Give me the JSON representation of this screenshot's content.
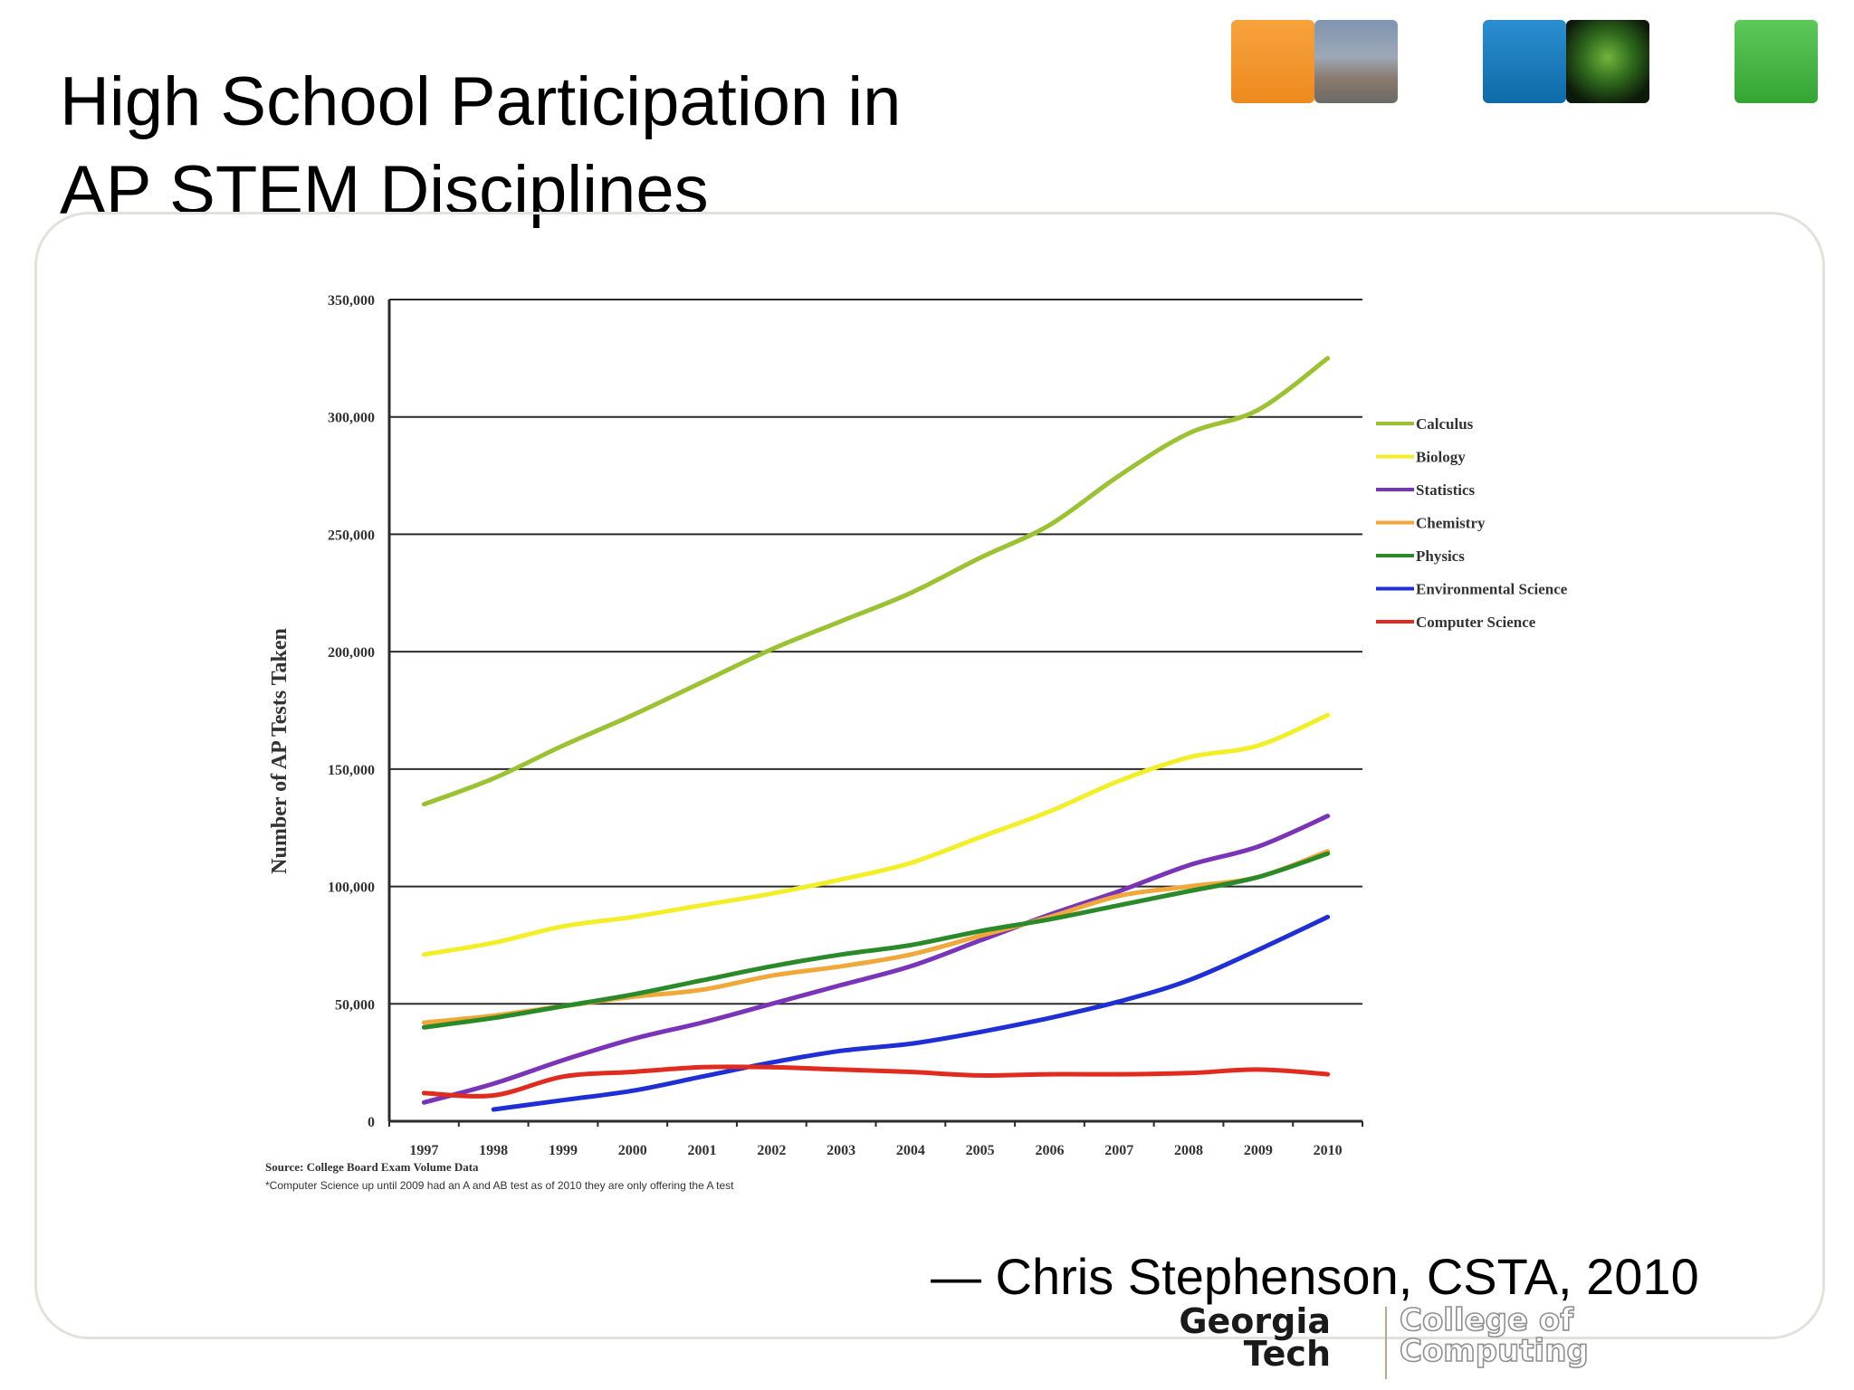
{
  "slide": {
    "title_line1": "High School Participation in",
    "title_line2": "AP STEM Disciplines",
    "quote": "— Chris Stephenson, CSTA, 2010"
  },
  "header_tiles": [
    "orange-tile",
    "campus-photo-tile",
    "blue-tile",
    "network-photo-tile",
    "green-tile"
  ],
  "logo": {
    "line1": "Georgia",
    "line2": "Tech",
    "sub1": "College of",
    "sub2": "Computing"
  },
  "chart_data": {
    "type": "line",
    "title": "",
    "xlabel": "",
    "ylabel": "Number of AP Tests Taken",
    "x": [
      "1997",
      "1998",
      "1999",
      "2000",
      "2001",
      "2002",
      "2003",
      "2004",
      "2005",
      "2006",
      "2007",
      "2008",
      "2009",
      "2010"
    ],
    "ylim": [
      0,
      350000
    ],
    "yticks": [
      0,
      50000,
      100000,
      150000,
      200000,
      250000,
      300000,
      350000
    ],
    "ytick_labels": [
      "0",
      "50,000",
      "100,000",
      "150,000",
      "200,000",
      "250,000",
      "300,000",
      "350,000"
    ],
    "grid": "horizontal",
    "legend_position": "right",
    "series": [
      {
        "name": "Calculus",
        "color": "#9bc232",
        "values": [
          135000,
          146000,
          160000,
          173000,
          187000,
          201000,
          213000,
          225000,
          240000,
          254000,
          275000,
          293000,
          303000,
          325000
        ]
      },
      {
        "name": "Biology",
        "color": "#f2ee28",
        "values": [
          71000,
          76000,
          83000,
          87000,
          92000,
          97000,
          103000,
          110000,
          121000,
          132000,
          145000,
          155000,
          160000,
          173000
        ]
      },
      {
        "name": "Statistics",
        "color": "#7a34b8",
        "values": [
          8000,
          16000,
          26000,
          35000,
          42000,
          50000,
          58000,
          66000,
          77000,
          88000,
          98000,
          109000,
          117000,
          130000
        ]
      },
      {
        "name": "Chemistry",
        "color": "#f0a83a",
        "values": [
          42000,
          45000,
          49000,
          53000,
          56000,
          62000,
          66000,
          71000,
          79000,
          87000,
          96000,
          100000,
          104000,
          115000
        ]
      },
      {
        "name": "Physics",
        "color": "#2a8a2a",
        "values": [
          40000,
          44000,
          49000,
          54000,
          60000,
          66000,
          71000,
          75000,
          81000,
          86000,
          92000,
          98000,
          104000,
          114000
        ]
      },
      {
        "name": "Environmental Science",
        "color": "#1f2fd6",
        "values": [
          null,
          5000,
          9000,
          13000,
          19000,
          25000,
          30000,
          33000,
          38000,
          44000,
          51000,
          60000,
          73000,
          87000
        ]
      },
      {
        "name": "Computer Science",
        "color": "#e02b1e",
        "values": [
          12000,
          11000,
          19000,
          21000,
          23000,
          23000,
          22000,
          21000,
          19500,
          20000,
          20000,
          20500,
          22000,
          20000
        ]
      }
    ],
    "source_note": "Source: College Board Exam Volume Data",
    "footnote": "*Computer Science up until 2009 had an A and AB test as of 2010 they are only offering the A test"
  }
}
